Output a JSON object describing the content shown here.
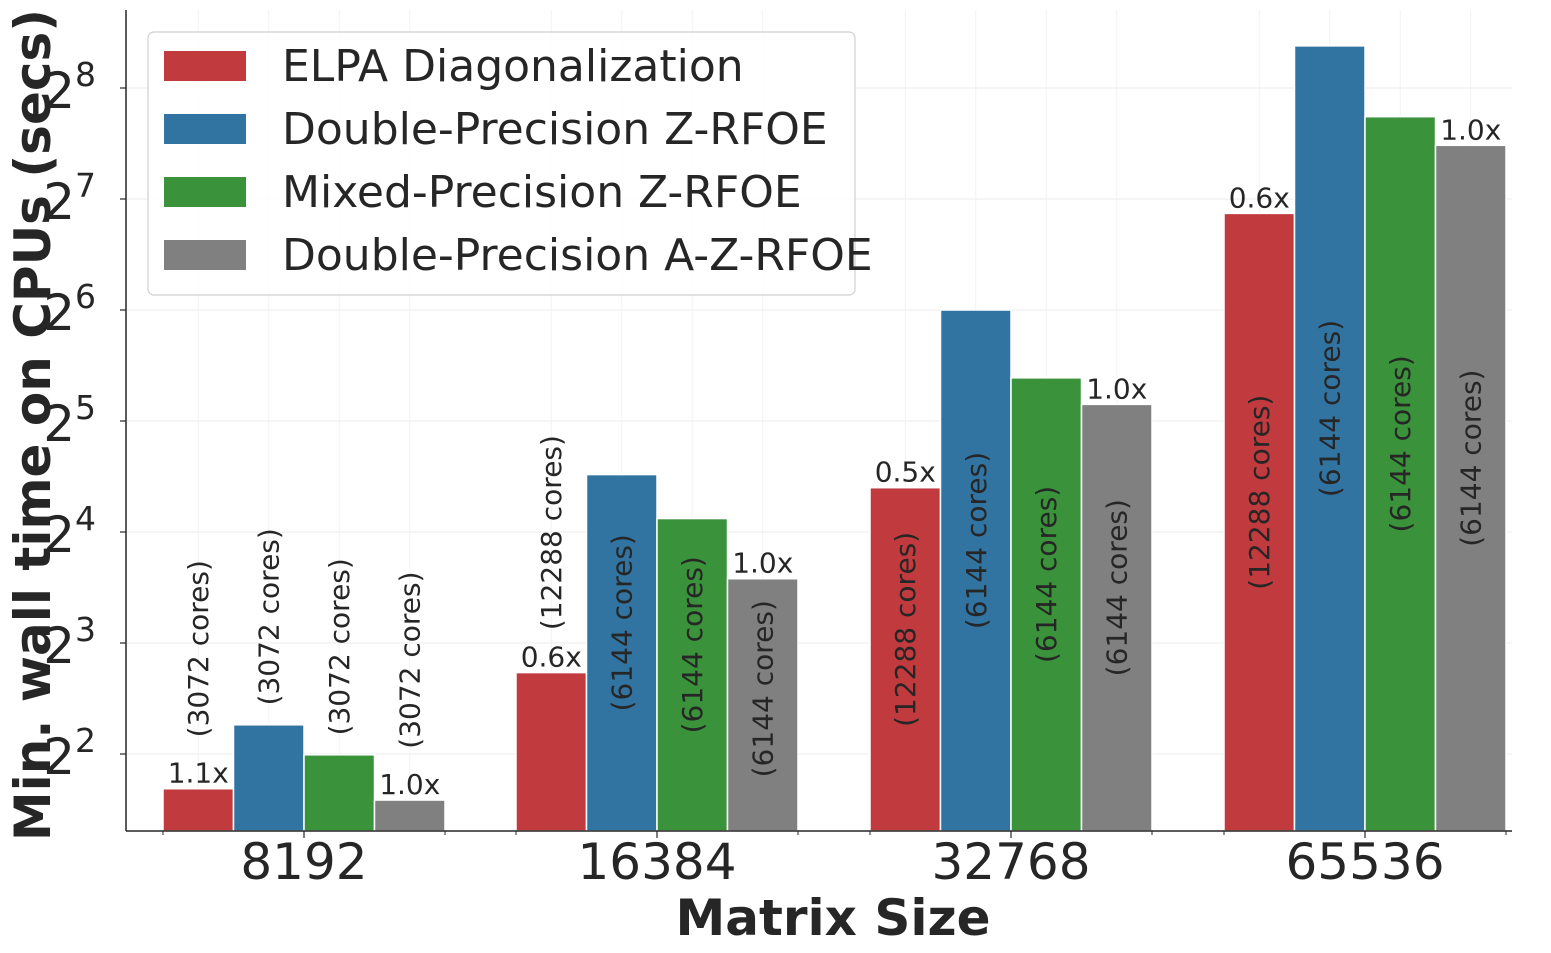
{
  "chart_data": {
    "type": "bar",
    "title": "",
    "xlabel": "Matrix Size",
    "ylabel": "Min. wall time on CPUs (secs)",
    "yscale": "log2",
    "ylim": [
      2.2,
      512
    ],
    "yticks": [
      {
        "base": "2",
        "exp": "2",
        "value": 4
      },
      {
        "base": "2",
        "exp": "3",
        "value": 8
      },
      {
        "base": "2",
        "exp": "4",
        "value": 16
      },
      {
        "base": "2",
        "exp": "5",
        "value": 32
      },
      {
        "base": "2",
        "exp": "6",
        "value": 64
      },
      {
        "base": "2",
        "exp": "7",
        "value": 128
      },
      {
        "base": "2",
        "exp": "8",
        "value": 256
      }
    ],
    "categories": [
      "8192",
      "16384",
      "32768",
      "65536"
    ],
    "series": [
      {
        "name": "ELPA Diagonalization",
        "color": "#c03a3e",
        "values": [
          3.22,
          6.65,
          21.1,
          117.0
        ],
        "cores": [
          "(3072 cores)",
          "(12288 cores)",
          "(12288 cores)",
          "(12288 cores)"
        ],
        "cores_position": [
          "above",
          "above",
          "inside",
          "inside"
        ],
        "speedup": [
          "1.1x",
          "0.6x",
          "0.5x",
          "0.6x"
        ]
      },
      {
        "name": "Double-Precision Z-RFOE",
        "color": "#3274a1",
        "values": [
          4.8,
          22.9,
          64.0,
          333.0
        ],
        "cores": [
          "(3072 cores)",
          "(6144 cores)",
          "(6144 cores)",
          "(6144 cores)"
        ],
        "cores_position": [
          "above",
          "inside",
          "inside",
          "inside"
        ],
        "speedup": [
          "",
          "",
          "",
          ""
        ]
      },
      {
        "name": "Mixed-Precision Z-RFOE",
        "color": "#3a923a",
        "values": [
          3.98,
          17.4,
          41.9,
          214.0
        ],
        "cores": [
          "(3072 cores)",
          "(6144 cores)",
          "(6144 cores)",
          "(6144 cores)"
        ],
        "cores_position": [
          "above",
          "inside",
          "inside",
          "inside"
        ],
        "speedup": [
          "",
          "",
          "",
          ""
        ]
      },
      {
        "name": "Double-Precision A-Z-RFOE",
        "color": "#808080",
        "values": [
          3.0,
          11.95,
          35.5,
          179.0
        ],
        "cores": [
          "(3072 cores)",
          "(6144 cores)",
          "(6144 cores)",
          "(6144 cores)"
        ],
        "cores_position": [
          "above",
          "inside",
          "inside",
          "inside"
        ],
        "speedup": [
          "1.0x",
          "1.0x",
          "1.0x",
          "1.0x"
        ]
      }
    ],
    "legend_position": "top-left",
    "grid": true
  }
}
